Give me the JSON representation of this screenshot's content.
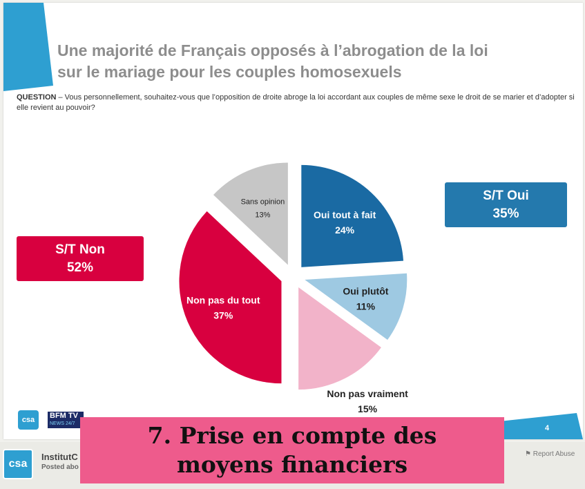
{
  "slide": {
    "title_line1": "Une majorité de Français opposés à l’abrogation de la loi",
    "title_line2": "sur le mariage pour les couples homosexuels",
    "question_label": "QUESTION",
    "question_text": " – Vous personnellement, souhaitez-vous que l’opposition de droite abroge la loi accordant aux couples de même sexe le droit de se marier et d’adopter si elle revient au pouvoir?",
    "page_number": "4",
    "logo_csa": "csa",
    "logo_bfm": "BFM TV",
    "logo_bfm_sub": "NEWS 24/7"
  },
  "summary": {
    "oui_label": "S/T Oui",
    "oui_value": "35%",
    "non_label": "S/T Non",
    "non_value": "52%"
  },
  "chart_data": {
    "type": "pie",
    "title": "Une majorité de Français opposés à l’abrogation de la loi sur le mariage pour les couples homosexuels",
    "slices": [
      {
        "label": "Oui tout à fait",
        "value": 24,
        "display": "24%",
        "color": "#1a6aa3"
      },
      {
        "label": "Oui plutôt",
        "value": 11,
        "display": "11%",
        "color": "#9ec9e2"
      },
      {
        "label": "Non pas vraiment",
        "value": 15,
        "display": "15%",
        "color": "#f2b3c9"
      },
      {
        "label": "Non pas du tout",
        "value": 37,
        "display": "37%",
        "color": "#d8003f"
      },
      {
        "label": "Sans opinion",
        "value": 13,
        "display": "13%",
        "color": "#c6c6c6"
      }
    ]
  },
  "banner": {
    "line1": "7. Prise en compte des",
    "line2": "moyens financiers"
  },
  "footer": {
    "uploader": "InstitutC",
    "posted": "Posted abo",
    "report_abuse": "Report Abuse",
    "avatar_text": "csa"
  },
  "colors": {
    "accent_blue": "#2e9fd1",
    "oui_box": "#2479ad",
    "non_box": "#d8003f",
    "banner": "#ee5b8c"
  }
}
